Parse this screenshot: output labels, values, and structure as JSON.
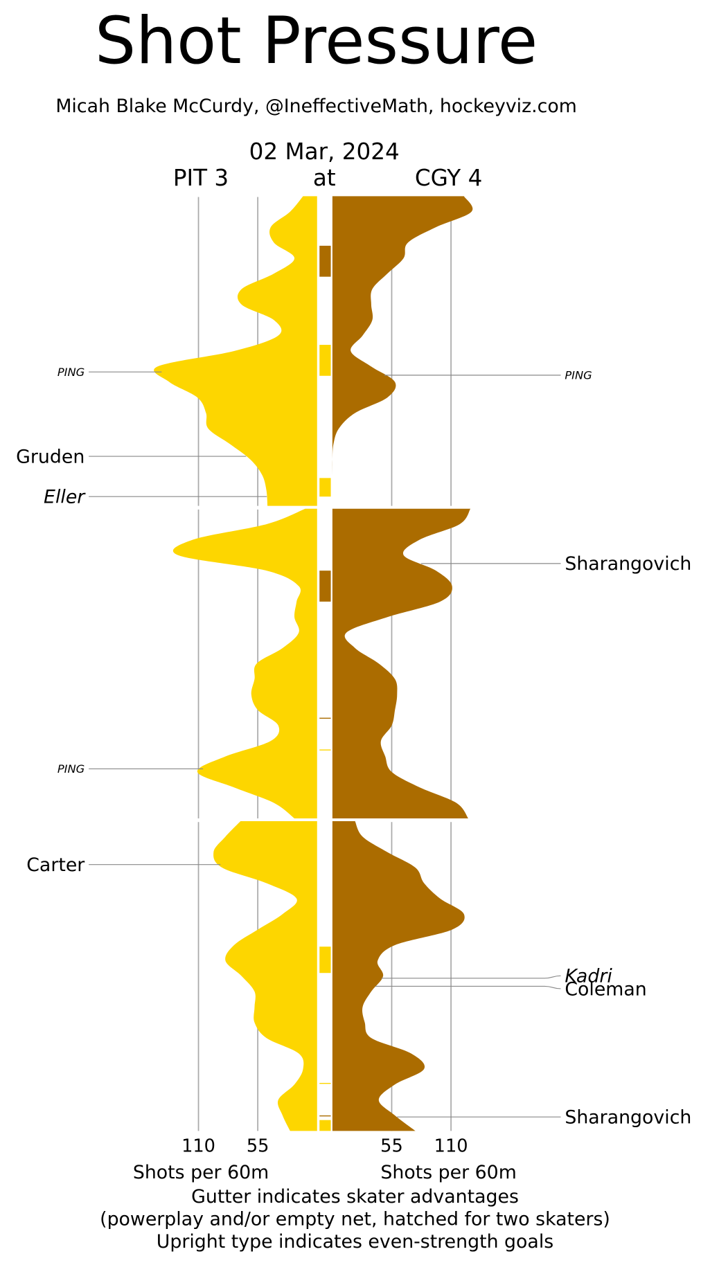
{
  "chart_data": {
    "type": "shot-pressure",
    "title": "Shot Pressure",
    "subtitle": "Micah Blake McCurdy, @IneffectiveMath, hockeyviz.com",
    "date": "02 Mar, 2024",
    "separator": "at",
    "x": [
      0,
      1,
      2,
      3,
      4,
      5,
      6,
      7,
      8,
      9,
      10,
      11,
      12,
      13,
      14,
      15,
      16,
      17,
      18,
      19,
      20
    ],
    "xlim": [
      0,
      20
    ],
    "vticks": [
      55,
      110
    ],
    "vlim": [
      0,
      110
    ],
    "axis_label": "Shots per 60m",
    "teams": [
      {
        "name": "PIT 3",
        "color": "#fdd600",
        "side": "left"
      },
      {
        "name": "CGY 4",
        "color": "#ab6c00",
        "side": "right"
      }
    ],
    "periods": [
      {
        "series": [
          {
            "values": [
              13,
              25,
              43,
              40,
              21,
              40,
              70,
              70,
              40,
              36,
              77,
              148,
              137,
              111,
              103,
              101,
              81,
              62,
              51,
              47,
              46
            ]
          },
          {
            "values": [
              122,
              129,
              96,
              70,
              66,
              51,
              37,
              36,
              37,
              28,
              17,
              36,
              58,
              51,
              21,
              6,
              1,
              0,
              0,
              0,
              0
            ]
          }
        ]
      },
      {
        "series": [
          {
            "values": [
              11,
              47,
              115,
              129,
              47,
              17,
              19,
              21,
              17,
              32,
              56,
              58,
              61,
              55,
              36,
              43,
              85,
              111,
              77,
              40,
              21
            ]
          },
          {
            "values": [
              128,
              118,
              81,
              66,
              96,
              111,
              100,
              51,
              13,
              21,
              43,
              58,
              60,
              58,
              55,
              45,
              49,
              55,
              81,
              115,
              126
            ]
          }
        ]
      },
      {
        "series": [
          {
            "values": [
              71,
              85,
              96,
              88,
              47,
              19,
              32,
              55,
              77,
              85,
              70,
              58,
              58,
              58,
              47,
              17,
              13,
              21,
              36,
              32,
              25
            ]
          },
          {
            "values": [
              21,
              28,
              51,
              77,
              85,
              100,
              122,
              111,
              58,
              42,
              47,
              36,
              28,
              30,
              36,
              73,
              85,
              58,
              43,
              58,
              77
            ]
          }
        ]
      }
    ],
    "advantages": [
      {
        "team": 1,
        "period": 0,
        "start": 3.2,
        "end": 5.2
      },
      {
        "team": 0,
        "period": 0,
        "start": 9.6,
        "end": 11.6
      },
      {
        "team": 0,
        "period": 0,
        "start": 18.2,
        "end": 19.4
      },
      {
        "team": 1,
        "period": 1,
        "start": 4.0,
        "end": 6.0
      },
      {
        "team": 1,
        "period": 1,
        "start": 13.5,
        "end": 13.55
      },
      {
        "team": 0,
        "period": 1,
        "start": 15.55,
        "end": 15.6
      },
      {
        "team": 0,
        "period": 2,
        "start": 8.1,
        "end": 9.8
      },
      {
        "team": 0,
        "period": 2,
        "start": 16.9,
        "end": 16.95
      },
      {
        "team": 1,
        "period": 2,
        "start": 19.0,
        "end": 19.05
      },
      {
        "team": 0,
        "period": 2,
        "start": 19.3,
        "end": 20
      }
    ],
    "goals": [
      {
        "name": "PING",
        "team": 0,
        "period": 0,
        "minute": 11.35,
        "style": "small"
      },
      {
        "name": "Gruden",
        "team": 0,
        "period": 0,
        "minute": 16.8,
        "style": "upright"
      },
      {
        "name": "Eller",
        "team": 0,
        "period": 0,
        "minute": 19.4,
        "style": "italic"
      },
      {
        "name": "PING",
        "team": 1,
        "period": 0,
        "minute": 11.56,
        "style": "small"
      },
      {
        "name": "Sharangovich",
        "team": 1,
        "period": 1,
        "minute": 3.54,
        "style": "upright"
      },
      {
        "name": "PING",
        "team": 0,
        "period": 1,
        "minute": 16.8,
        "style": "small"
      },
      {
        "name": "Carter",
        "team": 0,
        "period": 2,
        "minute": 2.8,
        "style": "upright"
      },
      {
        "name": "Kadri",
        "team": 1,
        "period": 2,
        "minute": 10.14,
        "style": "italic"
      },
      {
        "name": "Coleman",
        "team": 1,
        "period": 2,
        "minute": 10.66,
        "style": "upright"
      },
      {
        "name": "Sharangovich",
        "team": 1,
        "period": 2,
        "minute": 19.1,
        "style": "upright"
      }
    ],
    "notes": [
      "Gutter indicates skater advantages",
      "(powerplay and/or empty net, hatched for two skaters)",
      "Upright type indicates even-strength goals"
    ]
  }
}
